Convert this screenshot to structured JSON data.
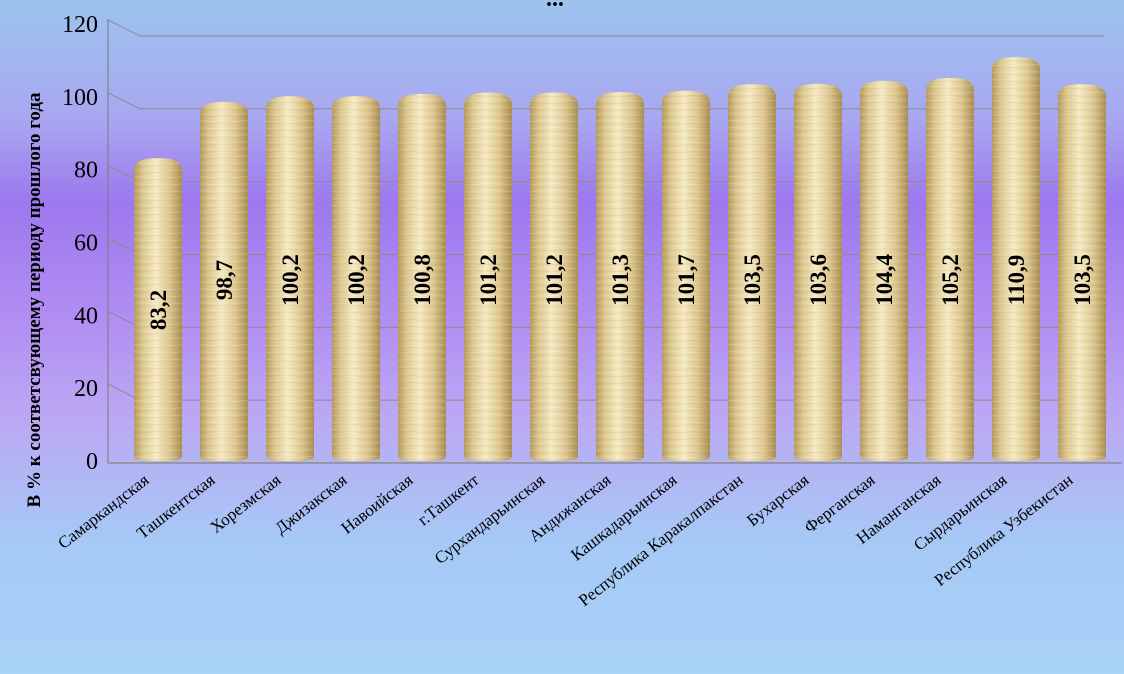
{
  "chart_data": {
    "type": "bar",
    "title": "...",
    "ylabel": "В % к соответсвующему периоду прошлого года",
    "xlabel": "",
    "ylim": [
      0,
      120
    ],
    "yticks": [
      0,
      20,
      40,
      60,
      80,
      100,
      120
    ],
    "grid": true,
    "categories": [
      "Самаркандская",
      "Ташкентская",
      "Хорезмская",
      "Джизакская",
      "Навоийская",
      "г.Ташкент",
      "Сурхандарьинская",
      "Андижанская",
      "Кашкадарьинская",
      "Республика Каракалпакстан",
      "Бухарская",
      "Ферганская",
      "Наманганская",
      "Сырдарьинская",
      "Республика Узбекистан"
    ],
    "values": [
      83.2,
      98.7,
      100.2,
      100.2,
      100.8,
      101.2,
      101.2,
      101.3,
      101.7,
      103.5,
      103.6,
      104.4,
      105.2,
      110.9,
      103.5
    ],
    "value_labels": [
      "83,2",
      "98,7",
      "100,2",
      "100,2",
      "100,8",
      "101,2",
      "101,2",
      "101,3",
      "101,7",
      "103,5",
      "103,6",
      "104,4",
      "105,2",
      "110,9",
      "103,5"
    ],
    "bar_color": "#e2cf98"
  }
}
